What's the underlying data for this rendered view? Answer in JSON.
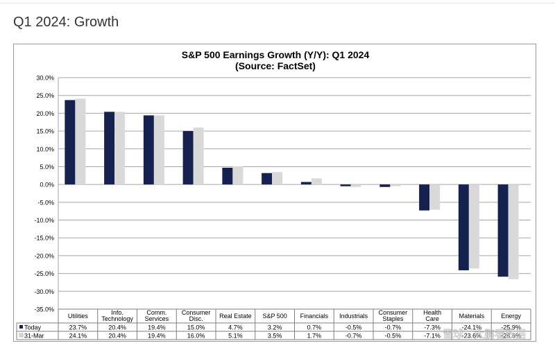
{
  "page": {
    "heading": "Q1 2024: Growth"
  },
  "chart_data": {
    "type": "bar",
    "title": "S&P 500 Earnings Growth (Y/Y): Q1 2024",
    "subtitle": "(Source: FactSet)",
    "categories": [
      [
        "Utilities"
      ],
      [
        "Info.",
        "Technology"
      ],
      [
        "Comm.",
        "Services"
      ],
      [
        "Consumer",
        "Disc."
      ],
      [
        "Real Estate"
      ],
      [
        "S&P 500"
      ],
      [
        "Financials"
      ],
      [
        "Industrials"
      ],
      [
        "Consumer",
        "Staples"
      ],
      [
        "Health",
        "Care"
      ],
      [
        "Materials"
      ],
      [
        "Energy"
      ]
    ],
    "series": [
      {
        "name": "Today",
        "color": "#15214f",
        "values": [
          23.7,
          20.4,
          19.4,
          15.0,
          4.7,
          3.2,
          0.7,
          -0.5,
          -0.7,
          -7.3,
          -24.1,
          -25.9
        ],
        "labels": [
          "23.7%",
          "20.4%",
          "19.4%",
          "15.0%",
          "4.7%",
          "3.2%",
          "0.7%",
          "-0.5%",
          "-0.7%",
          "-7.3%",
          "-24.1%",
          "-25.9%"
        ]
      },
      {
        "name": "31-Mar",
        "color": "#d9d9d9",
        "values": [
          24.1,
          20.4,
          19.4,
          16.0,
          5.1,
          3.5,
          1.7,
          -0.7,
          -0.5,
          -7.1,
          -23.6,
          -26.6
        ],
        "labels": [
          "24.1%",
          "20.4%",
          "19.4%",
          "16.0%",
          "5.1%",
          "3.5%",
          "1.7%",
          "-0.7%",
          "-0.5%",
          "-7.1%",
          "-23.6%",
          "-26.6%"
        ]
      }
    ],
    "ylim": [
      -35,
      30
    ],
    "ytick_step": 5,
    "ytick_format": "percent_1dp",
    "grid": true,
    "legend": "data-table-left",
    "xlabel": "",
    "ylabel": ""
  },
  "watermark": {
    "text": "雪球：大鹏看数据"
  }
}
